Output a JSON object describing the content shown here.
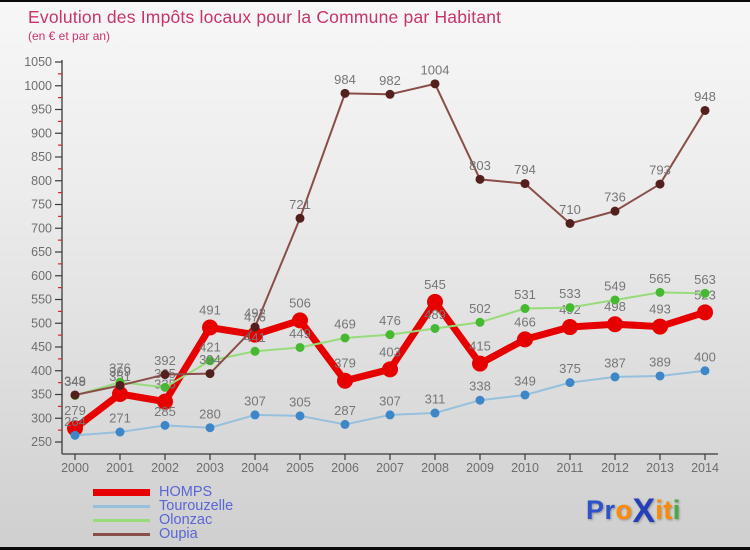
{
  "header": {
    "title": "Evolution des Impôts locaux pour la Commune par Habitant",
    "subtitle": "(en € et par an)"
  },
  "style": {
    "title_color": "#C9336B",
    "legend_text_color": "#5A66D6",
    "data_label_color": "#767676",
    "axis_line_color": "#3A3A3A",
    "tick_label_color": "#6E6E6E",
    "minor_tick_color": "#CC2A2A",
    "background_top": "#F7F7F7",
    "background_bottom": "#CFCFCF"
  },
  "chart_data": {
    "type": "line",
    "title": "Evolution des Impôts locaux pour la Commune par Habitant",
    "subtitle": "(en € et par an)",
    "x": [
      2000,
      2001,
      2002,
      2003,
      2004,
      2005,
      2006,
      2007,
      2008,
      2009,
      2010,
      2011,
      2012,
      2013,
      2014
    ],
    "series": [
      {
        "name": "HOMPS",
        "color": "#E60000",
        "marker_color": "#E60000",
        "line_width": 7,
        "marker_radius": 8,
        "values": [
          279,
          351,
          335,
          491,
          476,
          506,
          379,
          403,
          545,
          415,
          466,
          492,
          498,
          493,
          523
        ]
      },
      {
        "name": "Tourouzelle",
        "color": "#96C0DC",
        "marker_color": "#3D87C9",
        "line_width": 2,
        "marker_radius": 4.5,
        "values": [
          264,
          271,
          285,
          280,
          307,
          305,
          287,
          307,
          311,
          338,
          349,
          375,
          387,
          389,
          400
        ]
      },
      {
        "name": "Olonzac",
        "color": "#98DB7A",
        "marker_color": "#46B832",
        "line_width": 2,
        "marker_radius": 4.5,
        "values": [
          348,
          376,
          365,
          421,
          441,
          449,
          469,
          476,
          489,
          502,
          531,
          533,
          549,
          565,
          563
        ]
      },
      {
        "name": "Oupia",
        "color": "#8A4E48",
        "marker_color": "#54201E",
        "line_width": 2,
        "marker_radius": 4.5,
        "values": [
          349,
          369,
          392,
          394,
          492,
          721,
          984,
          982,
          1004,
          803,
          794,
          710,
          736,
          793,
          948
        ]
      }
    ],
    "ylim": [
      250,
      1050
    ],
    "ytick_step": 50,
    "yminor_step": 25,
    "grid": false,
    "legend_position": "bottom-left",
    "data_labels": true
  },
  "legend": {
    "items": [
      {
        "label": "HOMPS"
      },
      {
        "label": "Tourouzelle"
      },
      {
        "label": "Olonzac"
      },
      {
        "label": "Oupia"
      }
    ]
  },
  "logo": {
    "letters": [
      {
        "ch": "P",
        "color": "#2E52C8",
        "big": false
      },
      {
        "ch": "r",
        "color": "#2E52C8",
        "big": false
      },
      {
        "ch": "o",
        "color": "#FF8A00",
        "big": false
      },
      {
        "ch": "X",
        "color": "#2440B8",
        "big": true
      },
      {
        "ch": "i",
        "color": "#FF8A00",
        "big": false
      },
      {
        "ch": "t",
        "color": "#FF8A00",
        "big": false
      },
      {
        "ch": "i",
        "color": "#49A942",
        "big": false
      }
    ]
  }
}
